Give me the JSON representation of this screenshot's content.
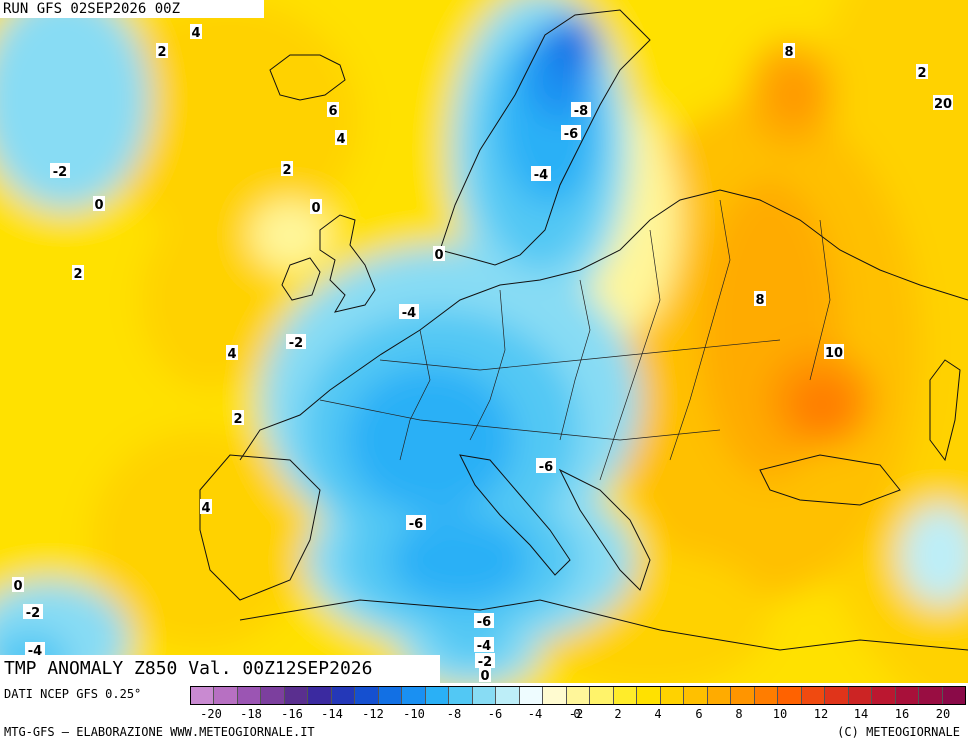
{
  "map": {
    "run_title": "RUN GFS 02SEP2026 00Z",
    "field_title": "TMP ANOMALY Z850 Val. 00Z12SEP2026",
    "contour_labels": [
      "4",
      "2",
      "6",
      "4",
      "-2",
      "2",
      "0",
      "0",
      "2",
      "0",
      "-4",
      "-2",
      "4",
      "2",
      "4",
      "-8",
      "-6",
      "-4",
      "8",
      "2",
      "20",
      "8",
      "10",
      "-6",
      "-6",
      "-6",
      "-4",
      "-2",
      "0",
      "0",
      "-2",
      "-4"
    ]
  },
  "footer": {
    "data_source": "DATI NCEP GFS 0.25°",
    "credit_left": "MTG-GFS – ELABORAZIONE WWW.METEOGIORNALE.IT",
    "credit_right": "(C) METEOGIORNALE"
  },
  "legend": {
    "ticks": [
      "-20",
      "-18",
      "-16",
      "-14",
      "-12",
      "-10",
      "-8",
      "-6",
      "-4",
      "-2",
      "0",
      "2",
      "4",
      "6",
      "8",
      "10",
      "12",
      "14",
      "16",
      "20"
    ],
    "colors": [
      "#c98ad1",
      "#b770c2",
      "#9b55b3",
      "#7c3f9e",
      "#5a2f8f",
      "#3b2aa0",
      "#2438b8",
      "#1550d0",
      "#1270e4",
      "#1a90f2",
      "#2ab0f6",
      "#52c8f4",
      "#88dcf4",
      "#bdeef8",
      "#eefcff",
      "#fffbd0",
      "#fff69a",
      "#fff36a",
      "#ffec2a",
      "#ffe100",
      "#ffd200",
      "#ffc000",
      "#ffab00",
      "#ff9500",
      "#ff7d00",
      "#ff6200",
      "#f04a10",
      "#e0341a",
      "#cc2424",
      "#bb1730",
      "#a8103a",
      "#990d42",
      "#8a0a48"
    ]
  }
}
